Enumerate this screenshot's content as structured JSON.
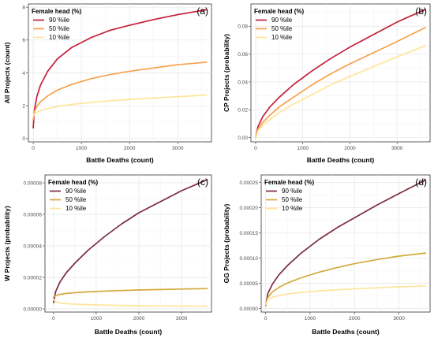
{
  "chart_data": [
    {
      "id": "a",
      "type": "line",
      "panel_label": "(a)",
      "xlabel": "Battle Deaths (count)",
      "ylabel": "All Projects (count)",
      "xlim": [
        -100,
        3700
      ],
      "ylim": [
        -0.2,
        8.2
      ],
      "xticks": [
        0,
        1000,
        2000,
        3000
      ],
      "xtick_labels": [
        "0",
        "1000",
        "2000",
        "3000"
      ],
      "yticks": [
        0,
        2,
        4,
        6,
        8
      ],
      "ytick_labels": [
        "0",
        "2",
        "4",
        "6",
        "8"
      ],
      "grid": true,
      "legend": {
        "title": "Female head (%)",
        "position": "top-left"
      },
      "series": [
        {
          "name": "90 %ile",
          "color": "#c41e3a",
          "x": [
            0,
            25,
            75,
            150,
            300,
            500,
            800,
            1200,
            1600,
            2000,
            2500,
            3000,
            3600
          ],
          "y": [
            0.65,
            1.75,
            2.55,
            3.25,
            4.1,
            4.85,
            5.55,
            6.15,
            6.6,
            6.9,
            7.25,
            7.55,
            7.85
          ]
        },
        {
          "name": "50 %ile",
          "color": "#f7a14b",
          "x": [
            0,
            25,
            75,
            150,
            300,
            500,
            800,
            1200,
            1600,
            2000,
            2500,
            3000,
            3600
          ],
          "y": [
            1.15,
            1.65,
            1.95,
            2.25,
            2.6,
            2.95,
            3.3,
            3.65,
            3.9,
            4.1,
            4.3,
            4.5,
            4.65
          ]
        },
        {
          "name": "10 %ile",
          "color": "#ffe49a",
          "x": [
            0,
            25,
            75,
            150,
            300,
            500,
            800,
            1200,
            1600,
            2000,
            2500,
            3000,
            3600
          ],
          "y": [
            1.35,
            1.5,
            1.6,
            1.7,
            1.82,
            1.95,
            2.08,
            2.2,
            2.3,
            2.38,
            2.47,
            2.55,
            2.65
          ]
        }
      ]
    },
    {
      "id": "b",
      "type": "line",
      "panel_label": "(b)",
      "xlabel": "Battle Deaths (count)",
      "ylabel": "CP Projects (probability)",
      "xlim": [
        -100,
        3700
      ],
      "ylim": [
        -0.003,
        0.096
      ],
      "xticks": [
        0,
        1000,
        2000,
        3000
      ],
      "xtick_labels": [
        "0",
        "1000",
        "2000",
        "3000"
      ],
      "yticks": [
        0.0,
        0.02,
        0.04,
        0.06,
        0.08
      ],
      "ytick_labels": [
        "0.00",
        "0.02",
        "0.04",
        "0.06",
        "0.08"
      ],
      "grid": true,
      "legend": {
        "title": "Female head (%)",
        "position": "top-left"
      },
      "series": [
        {
          "name": "90 %ile",
          "color": "#c41e3a",
          "x": [
            0,
            50,
            150,
            300,
            500,
            800,
            1200,
            1600,
            2000,
            2500,
            3000,
            3600
          ],
          "y": [
            0.0,
            0.008,
            0.015,
            0.022,
            0.029,
            0.038,
            0.048,
            0.057,
            0.065,
            0.074,
            0.083,
            0.092
          ]
        },
        {
          "name": "50 %ile",
          "color": "#f7a14b",
          "x": [
            0,
            50,
            150,
            300,
            500,
            800,
            1200,
            1600,
            2000,
            2500,
            3000,
            3600
          ],
          "y": [
            0.0,
            0.006,
            0.011,
            0.016,
            0.022,
            0.029,
            0.038,
            0.046,
            0.053,
            0.061,
            0.069,
            0.079
          ]
        },
        {
          "name": "10 %ile",
          "color": "#ffe49a",
          "x": [
            0,
            50,
            150,
            300,
            500,
            800,
            1200,
            1600,
            2000,
            2500,
            3000,
            3600
          ],
          "y": [
            0.0,
            0.005,
            0.009,
            0.013,
            0.018,
            0.024,
            0.031,
            0.038,
            0.044,
            0.051,
            0.058,
            0.066
          ]
        }
      ]
    },
    {
      "id": "c",
      "type": "line",
      "panel_label": "(c)",
      "xlabel": "Battle Deaths (count)",
      "ylabel": "W Projects (probability)",
      "xlim": [
        -200,
        3700
      ],
      "ylim": [
        -2e-06,
        8.5e-05
      ],
      "xticks": [
        0,
        1000,
        2000,
        3000
      ],
      "xtick_labels": [
        "0",
        "1000",
        "2000",
        "3000"
      ],
      "yticks": [
        0.0,
        2e-05,
        4e-05,
        6e-05,
        8e-05
      ],
      "ytick_labels": [
        "0.00000",
        "0.00002",
        "0.00004",
        "0.00006",
        "0.00008"
      ],
      "grid": true,
      "legend": {
        "title": "Female head (%)",
        "position": "top-left"
      },
      "series": [
        {
          "name": "90 %ile",
          "color": "#7b2c3c",
          "x": [
            0,
            50,
            150,
            300,
            500,
            800,
            1200,
            1600,
            2000,
            2500,
            3000,
            3600
          ],
          "y": [
            4e-06,
            1.1e-05,
            1.7e-05,
            2.3e-05,
            2.9e-05,
            3.7e-05,
            4.6e-05,
            5.4e-05,
            6.1e-05,
            6.8e-05,
            7.5e-05,
            8.2e-05
          ]
        },
        {
          "name": "50 %ile",
          "color": "#d4aa3e",
          "x": [
            0,
            50,
            150,
            300,
            500,
            800,
            1200,
            1600,
            2000,
            2500,
            3000,
            3600
          ],
          "y": [
            7.5e-06,
            8.5e-06,
            9.2e-06,
            9.8e-06,
            1.03e-05,
            1.08e-05,
            1.13e-05,
            1.17e-05,
            1.2e-05,
            1.23e-05,
            1.26e-05,
            1.29e-05
          ]
        },
        {
          "name": "10 %ile",
          "color": "#ffe49a",
          "x": [
            0,
            50,
            150,
            300,
            500,
            800,
            1200,
            1600,
            2000,
            2500,
            3000,
            3600
          ],
          "y": [
            6e-06,
            4.5e-06,
            3.8e-06,
            3.3e-06,
            3e-06,
            2.7e-06,
            2.4e-06,
            2.2e-06,
            2e-06,
            1.9e-06,
            1.8e-06,
            1.7e-06
          ]
        }
      ]
    },
    {
      "id": "d",
      "type": "line",
      "panel_label": "(d)",
      "xlabel": "Battle Deaths (count)",
      "ylabel": "GG Projects (probability)",
      "xlim": [
        -100,
        3700
      ],
      "ylim": [
        -7e-06,
        0.000265
      ],
      "xticks": [
        0,
        1000,
        2000,
        3000
      ],
      "xtick_labels": [
        "0",
        "1000",
        "2000",
        "3000"
      ],
      "yticks": [
        0.0,
        5e-05,
        0.0001,
        0.00015,
        0.0002,
        0.00025
      ],
      "ytick_labels": [
        "0.00000",
        "0.00005",
        "0.00010",
        "0.00015",
        "0.00020",
        "0.00025"
      ],
      "grid": true,
      "legend": {
        "title": "Female head (%)",
        "position": "top-left"
      },
      "series": [
        {
          "name": "90 %ile",
          "color": "#7b2c3c",
          "x": [
            0,
            50,
            150,
            300,
            500,
            800,
            1200,
            1600,
            2000,
            2500,
            3000,
            3600
          ],
          "y": [
            5e-06,
            3e-05,
            4.8e-05,
            6.7e-05,
            8.6e-05,
            0.00011,
            0.000137,
            0.00016,
            0.00018,
            0.000205,
            0.000228,
            0.000255
          ]
        },
        {
          "name": "50 %ile",
          "color": "#d4aa3e",
          "x": [
            0,
            50,
            150,
            300,
            500,
            800,
            1200,
            1600,
            2000,
            2500,
            3000,
            3600
          ],
          "y": [
            5e-06,
            2.2e-05,
            3.3e-05,
            4.2e-05,
            5.1e-05,
            6.1e-05,
            7.2e-05,
            8.1e-05,
            8.9e-05,
            9.7e-05,
            0.000104,
            0.00011
          ]
        },
        {
          "name": "10 %ile",
          "color": "#ffe49a",
          "x": [
            0,
            50,
            150,
            300,
            500,
            800,
            1200,
            1600,
            2000,
            2500,
            3000,
            3600
          ],
          "y": [
            8e-06,
            1.8e-05,
            2.2e-05,
            2.6e-05,
            2.9e-05,
            3.2e-05,
            3.5e-05,
            3.7e-05,
            3.9e-05,
            4.1e-05,
            4.3e-05,
            4.5e-05
          ]
        }
      ]
    }
  ]
}
